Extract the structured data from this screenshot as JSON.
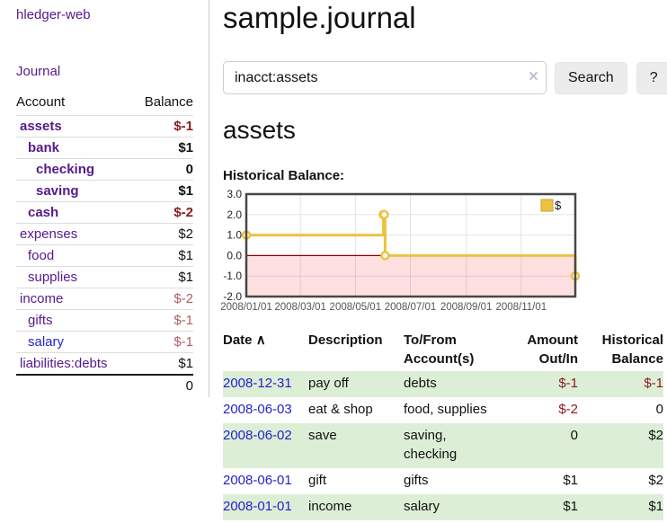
{
  "colors": {
    "link_purple": "#551a8b",
    "link_blue": "#2323cc",
    "negative_strong": "#8b1a1a",
    "negative_soft": "#b06066",
    "row_stripe_green": "#ddeed6",
    "series_gold": "#edc240",
    "zero_line_red": "#8b0000",
    "negative_region_pink": "rgba(255,0,0,0.12)"
  },
  "sidebar": {
    "app_title": "hledger-web",
    "nav": {
      "journal": "Journal"
    },
    "accounts_table": {
      "account_header": "Account",
      "balance_header": "Balance",
      "rows": [
        {
          "name": "assets",
          "balance": "$-1",
          "level": 1,
          "bold": true,
          "link": "purple",
          "balance_style": "neg-strong"
        },
        {
          "name": "bank",
          "balance": "$1",
          "level": 2,
          "bold": true,
          "link": "purple",
          "balance_style": "pos"
        },
        {
          "name": "checking",
          "balance": "0",
          "level": 3,
          "bold": true,
          "link": "purple",
          "balance_style": "pos"
        },
        {
          "name": "saving",
          "balance": "$1",
          "level": 3,
          "bold": true,
          "link": "purple",
          "balance_style": "pos"
        },
        {
          "name": "cash",
          "balance": "$-2",
          "level": 2,
          "bold": true,
          "link": "purple",
          "balance_style": "neg-strong"
        },
        {
          "name": "expenses",
          "balance": "$2",
          "level": 1,
          "bold": false,
          "link": "purple",
          "balance_style": "pos"
        },
        {
          "name": "food",
          "balance": "$1",
          "level": 2,
          "bold": false,
          "link": "purple",
          "balance_style": "pos"
        },
        {
          "name": "supplies",
          "balance": "$1",
          "level": 2,
          "bold": false,
          "link": "purple",
          "balance_style": "pos"
        },
        {
          "name": "income",
          "balance": "$-2",
          "level": 1,
          "bold": false,
          "link": "purple",
          "balance_style": "neg-soft"
        },
        {
          "name": "gifts",
          "balance": "$-1",
          "level": 2,
          "bold": false,
          "link": "purple",
          "balance_style": "neg-soft"
        },
        {
          "name": "salary",
          "balance": "$-1",
          "level": 2,
          "bold": false,
          "link": "blue",
          "balance_style": "neg-soft"
        },
        {
          "name": "liabilities:debts",
          "balance": "$1",
          "level": 1,
          "bold": false,
          "link": "purple",
          "balance_style": "pos"
        }
      ],
      "total": "0"
    }
  },
  "main": {
    "title": "sample.journal",
    "search": {
      "value": "inacct:assets",
      "clear_label": "×",
      "search_button": "Search",
      "help_button": "?"
    },
    "account_heading": "assets",
    "chart_heading": "Historical Balance:"
  },
  "chart_data": {
    "type": "line",
    "step": true,
    "title": "Historical Balance:",
    "series": [
      {
        "name": "$",
        "color": "#edc240",
        "x": [
          "2008-01-01",
          "2008-06-01",
          "2008-06-02",
          "2008-06-03",
          "2008-12-31"
        ],
        "y": [
          1,
          2,
          2,
          0,
          -1
        ]
      }
    ],
    "xlim": [
      "2008-01-01",
      "2008-12-31"
    ],
    "ylim": [
      -2,
      3
    ],
    "y_ticks": [
      3,
      2,
      1,
      0,
      -1,
      -2
    ],
    "y_tick_labels": [
      "3.0",
      "2.0",
      "1.0",
      "0.0",
      "-1.0",
      "-2.0"
    ],
    "x_ticks": [
      "2008-01-01",
      "2008-03-01",
      "2008-05-01",
      "2008-07-01",
      "2008-09-01",
      "2008-11-01"
    ],
    "x_tick_labels": [
      "2008/01/01",
      "2008/03/01",
      "2008/05/01",
      "2008/07/01",
      "2008/09/01",
      "2008/11/01"
    ],
    "grid": true,
    "legend": {
      "label": "$",
      "position": "top-right"
    },
    "zero_line_color": "#8b0000",
    "negative_region_fill": "rgba(255,0,0,0.12)"
  },
  "register": {
    "headers": {
      "date": "Date",
      "sort_indicator": "∧",
      "description": "Description",
      "accounts": "To/From Account(s)",
      "amount": "Amount Out/In",
      "balance": "Historical Balance"
    },
    "rows": [
      {
        "date": "2008-12-31",
        "description": "pay off",
        "accounts": "debts",
        "amount": "$-1",
        "amount_negative": true,
        "balance": "$-1",
        "balance_negative": true
      },
      {
        "date": "2008-06-03",
        "description": "eat & shop",
        "accounts": "food, supplies",
        "amount": "$-2",
        "amount_negative": true,
        "balance": "0",
        "balance_negative": false
      },
      {
        "date": "2008-06-02",
        "description": "save",
        "accounts": "saving, checking",
        "amount": "0",
        "amount_negative": false,
        "balance": "$2",
        "balance_negative": false
      },
      {
        "date": "2008-06-01",
        "description": "gift",
        "accounts": "gifts",
        "amount": "$1",
        "amount_negative": false,
        "balance": "$2",
        "balance_negative": false
      },
      {
        "date": "2008-01-01",
        "description": "income",
        "accounts": "salary",
        "amount": "$1",
        "amount_negative": false,
        "balance": "$1",
        "balance_negative": false
      }
    ]
  }
}
